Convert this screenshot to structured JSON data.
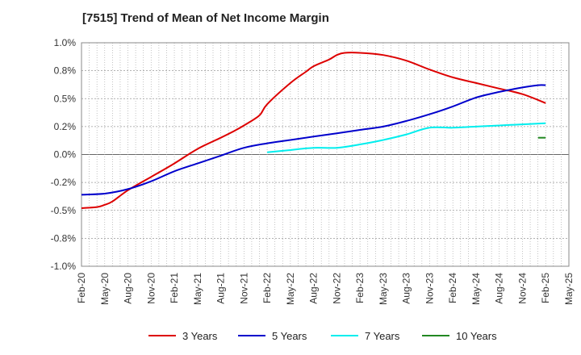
{
  "chart_data": {
    "type": "line",
    "title": "[7515]  Trend of Mean of Net Income Margin",
    "xlabel": "",
    "ylabel": "",
    "x_ticks": [
      "Feb-20",
      "May-20",
      "Aug-20",
      "Nov-20",
      "Feb-21",
      "May-21",
      "Aug-21",
      "Nov-21",
      "Feb-22",
      "May-22",
      "Aug-22",
      "Nov-22",
      "Feb-23",
      "May-23",
      "Aug-23",
      "Nov-23",
      "Feb-24",
      "May-24",
      "Aug-24",
      "Nov-24",
      "Feb-25",
      "May-25"
    ],
    "y_ticks": [
      "1.0%",
      "0.8%",
      "0.5%",
      "0.2%",
      "0.0%",
      "-0.2%",
      "-0.5%",
      "-0.8%",
      "-1.0%"
    ],
    "ylim": [
      -1.0,
      1.0
    ],
    "grid": true,
    "legend_position": "bottom",
    "series": [
      {
        "name": "3 Years",
        "color": "#dd0000",
        "x": [
          "Feb-20",
          "Apr-20",
          "May-20",
          "Jun-20",
          "Aug-20",
          "Nov-20",
          "Feb-21",
          "May-21",
          "Aug-21",
          "Oct-21",
          "Nov-21",
          "Jan-22",
          "Feb-22",
          "May-22",
          "Jul-22",
          "Aug-22",
          "Oct-22",
          "Nov-22",
          "Dec-22",
          "Feb-23",
          "May-23",
          "Aug-23",
          "Nov-23",
          "Feb-24",
          "May-24",
          "Aug-24",
          "Nov-24",
          "Feb-25"
        ],
        "values": [
          -0.48,
          -0.47,
          -0.45,
          -0.42,
          -0.32,
          -0.2,
          -0.08,
          0.05,
          0.15,
          0.22,
          0.26,
          0.35,
          0.45,
          0.64,
          0.74,
          0.79,
          0.85,
          0.89,
          0.91,
          0.91,
          0.89,
          0.84,
          0.76,
          0.69,
          0.64,
          0.59,
          0.54,
          0.46
        ]
      },
      {
        "name": "5 Years",
        "color": "#0000cc",
        "x": [
          "Feb-20",
          "May-20",
          "Aug-20",
          "Nov-20",
          "Feb-21",
          "May-21",
          "Aug-21",
          "Nov-21",
          "Feb-22",
          "May-22",
          "Aug-22",
          "Nov-22",
          "Feb-23",
          "May-23",
          "Aug-23",
          "Nov-23",
          "Feb-24",
          "May-24",
          "Aug-24",
          "Nov-24",
          "Jan-25",
          "Feb-25"
        ],
        "values": [
          -0.36,
          -0.35,
          -0.31,
          -0.24,
          -0.15,
          -0.08,
          -0.01,
          0.06,
          0.1,
          0.13,
          0.16,
          0.19,
          0.22,
          0.25,
          0.3,
          0.36,
          0.43,
          0.51,
          0.56,
          0.6,
          0.62,
          0.62
        ]
      },
      {
        "name": "7 Years",
        "color": "#00eeee",
        "x": [
          "Feb-22",
          "May-22",
          "Aug-22",
          "Nov-22",
          "Feb-23",
          "May-23",
          "Aug-23",
          "Nov-23",
          "Feb-24",
          "May-24",
          "Aug-24",
          "Nov-24",
          "Feb-25"
        ],
        "values": [
          0.02,
          0.04,
          0.06,
          0.06,
          0.09,
          0.13,
          0.18,
          0.24,
          0.24,
          0.25,
          0.26,
          0.27,
          0.28
        ]
      },
      {
        "name": "10 Years",
        "color": "#228822",
        "x": [
          "Jan-25",
          "Feb-25"
        ],
        "values": [
          0.15,
          0.15
        ]
      }
    ]
  }
}
